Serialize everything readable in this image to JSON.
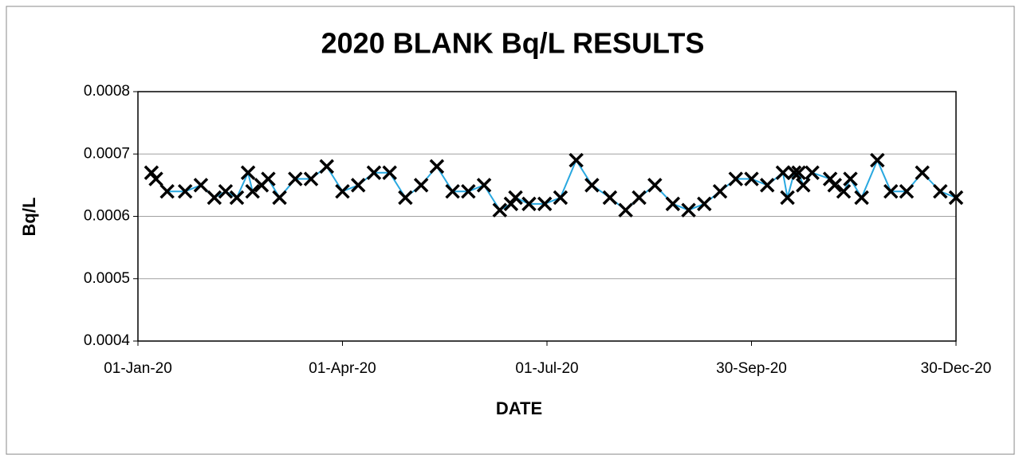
{
  "chart_data": {
    "type": "line",
    "title": "2020  BLANK  Bq/L  RESULTS",
    "x_label": "DATE",
    "y_label": "Bq/L",
    "color": "#29a8e0",
    "marker_color": "#000000",
    "grid": true,
    "x": [
      "2020-01-07",
      "2020-01-09",
      "2020-01-14",
      "2020-01-22",
      "2020-01-29",
      "2020-02-04",
      "2020-02-09",
      "2020-02-14",
      "2020-02-19",
      "2020-02-21",
      "2020-02-25",
      "2020-02-28",
      "2020-03-04",
      "2020-03-11",
      "2020-03-18",
      "2020-03-25",
      "2020-04-01",
      "2020-04-08",
      "2020-04-15",
      "2020-04-22",
      "2020-04-29",
      "2020-05-06",
      "2020-05-13",
      "2020-05-20",
      "2020-05-27",
      "2020-06-03",
      "2020-06-10",
      "2020-06-15",
      "2020-06-17",
      "2020-06-23",
      "2020-06-30",
      "2020-07-07",
      "2020-07-14",
      "2020-07-21",
      "2020-07-29",
      "2020-08-05",
      "2020-08-11",
      "2020-08-18",
      "2020-08-26",
      "2020-09-02",
      "2020-09-09",
      "2020-09-16",
      "2020-09-23",
      "2020-09-30",
      "2020-10-07",
      "2020-10-14",
      "2020-10-16",
      "2020-10-19",
      "2020-10-21",
      "2020-10-23",
      "2020-10-27",
      "2020-11-04",
      "2020-11-06",
      "2020-11-10",
      "2020-11-13",
      "2020-11-18",
      "2020-11-25",
      "2020-12-01",
      "2020-12-08",
      "2020-12-15",
      "2020-12-23",
      "2020-12-30"
    ],
    "values": [
      0.00067,
      0.00066,
      0.00064,
      0.00064,
      0.00065,
      0.00063,
      0.00064,
      0.00063,
      0.00067,
      0.00064,
      0.00065,
      0.00066,
      0.00063,
      0.00066,
      0.00066,
      0.00068,
      0.00064,
      0.00065,
      0.00067,
      0.00067,
      0.00063,
      0.00065,
      0.00068,
      0.00064,
      0.00064,
      0.00065,
      0.00061,
      0.00062,
      0.00063,
      0.00062,
      0.00062,
      0.00063,
      0.00069,
      0.00065,
      0.00063,
      0.00061,
      0.00063,
      0.00065,
      0.00062,
      0.00061,
      0.00062,
      0.00064,
      0.00066,
      0.00066,
      0.00065,
      0.00067,
      0.00063,
      0.00067,
      0.00067,
      0.00065,
      0.00067,
      0.00066,
      0.00065,
      0.00064,
      0.00066,
      0.00063,
      0.00069,
      0.00064,
      0.00064,
      0.00067,
      0.00064,
      0.00063
    ],
    "xlim": [
      "2020-01-01",
      "2020-12-30"
    ],
    "xticks": [
      {
        "value": "2020-01-01",
        "label": "01-Jan-20"
      },
      {
        "value": "2020-04-01",
        "label": "01-Apr-20"
      },
      {
        "value": "2020-07-01",
        "label": "01-Jul-20"
      },
      {
        "value": "2020-09-30",
        "label": "30-Sep-20"
      },
      {
        "value": "2020-12-30",
        "label": "30-Dec-20"
      }
    ],
    "ylim": [
      0.0004,
      0.0008
    ],
    "yticks": [
      0.0004,
      0.0005,
      0.0006,
      0.0007,
      0.0008
    ]
  }
}
